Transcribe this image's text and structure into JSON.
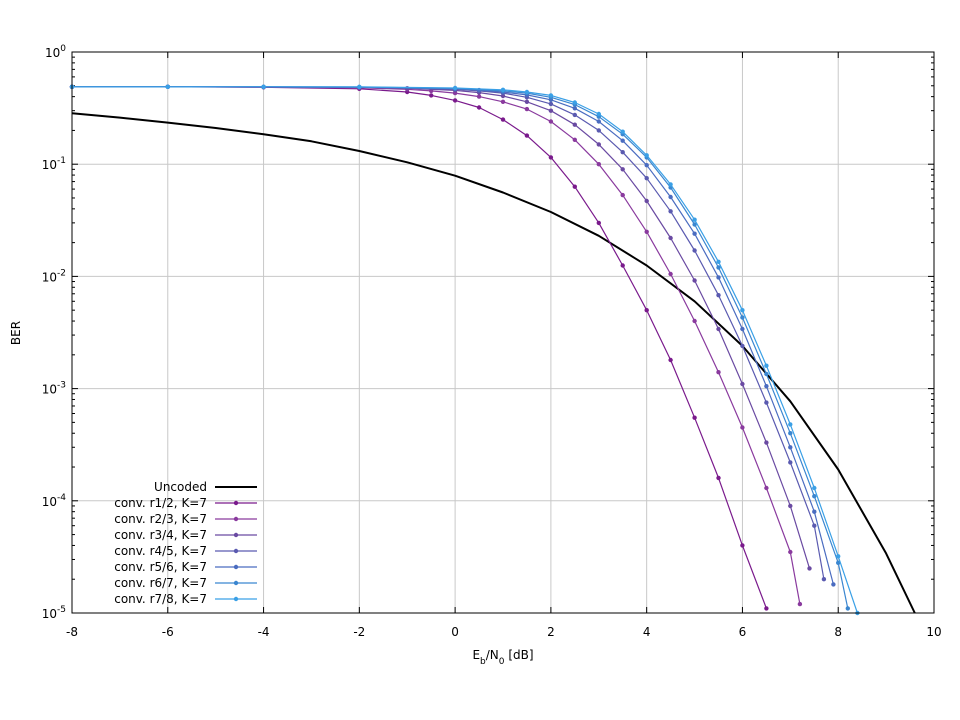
{
  "chart_data": {
    "type": "line",
    "title": "",
    "xlabel": {
      "main": "E",
      "sub1": "b",
      "mid": "/N",
      "sub2": "0",
      "tail": " [dB]"
    },
    "ylabel": "BER",
    "xlim": [
      -8,
      10
    ],
    "ylim": [
      1e-05,
      1
    ],
    "yscale": "log",
    "grid": true,
    "legend_position": "bottom-left",
    "x_ticks": [
      "-8",
      "-6",
      "-4",
      "-2",
      "0",
      "2",
      "4",
      "6",
      "8",
      "10"
    ],
    "y_ticks": [
      {
        "base": "10",
        "exp": "0"
      },
      {
        "base": "10",
        "exp": "-1"
      },
      {
        "base": "10",
        "exp": "-2"
      },
      {
        "base": "10",
        "exp": "-3"
      },
      {
        "base": "10",
        "exp": "-4"
      },
      {
        "base": "10",
        "exp": "-5"
      }
    ],
    "series": [
      {
        "name": "Uncoded",
        "color": "#000000",
        "markers": false,
        "x": [
          -8,
          -7,
          -6,
          -5,
          -4,
          -3,
          -2,
          -1,
          0,
          1,
          2,
          3,
          4,
          5,
          6,
          7,
          8,
          9,
          9.6
        ],
        "y": [
          0.285,
          0.26,
          0.235,
          0.21,
          0.185,
          0.16,
          0.131,
          0.104,
          0.079,
          0.056,
          0.0375,
          0.023,
          0.0125,
          0.006,
          0.0024,
          0.00077,
          0.00019,
          3.4e-05,
          1e-05
        ]
      },
      {
        "name": "conv. r1/2, K=7",
        "color": "#7a1a8c",
        "markers": true,
        "x": [
          -8,
          -6,
          -4,
          -2,
          -1,
          -0.5,
          0,
          0.5,
          1,
          1.5,
          2,
          2.5,
          3,
          3.5,
          4,
          4.5,
          5,
          5.5,
          6,
          6.5
        ],
        "y": [
          0.49,
          0.49,
          0.485,
          0.47,
          0.44,
          0.41,
          0.37,
          0.32,
          0.25,
          0.18,
          0.115,
          0.063,
          0.03,
          0.0125,
          0.005,
          0.0018,
          0.00055,
          0.00016,
          4e-05,
          1.1e-05
        ]
      },
      {
        "name": "conv. r2/3, K=7",
        "color": "#8a3a9e",
        "markers": true,
        "x": [
          -8,
          -6,
          -4,
          -2,
          -1,
          -0.5,
          0,
          0.5,
          1,
          1.5,
          2,
          2.5,
          3,
          3.5,
          4,
          4.5,
          5,
          5.5,
          6,
          6.5,
          7,
          7.2
        ],
        "y": [
          0.49,
          0.49,
          0.488,
          0.48,
          0.465,
          0.45,
          0.43,
          0.4,
          0.36,
          0.31,
          0.24,
          0.165,
          0.1,
          0.053,
          0.025,
          0.0105,
          0.004,
          0.0014,
          0.00045,
          0.00013,
          3.5e-05,
          1.2e-05
        ]
      },
      {
        "name": "conv. r3/4, K=7",
        "color": "#6a4aa2",
        "markers": true,
        "x": [
          -8,
          -6,
          -4,
          -2,
          -1,
          0,
          0.5,
          1,
          1.5,
          2,
          2.5,
          3,
          3.5,
          4,
          4.5,
          5,
          5.5,
          6,
          6.5,
          7,
          7.4
        ],
        "y": [
          0.49,
          0.49,
          0.488,
          0.484,
          0.475,
          0.455,
          0.435,
          0.405,
          0.36,
          0.3,
          0.225,
          0.15,
          0.09,
          0.047,
          0.022,
          0.0092,
          0.0034,
          0.0011,
          0.00033,
          9e-05,
          2.5e-05
        ]
      },
      {
        "name": "conv. r4/5, K=7",
        "color": "#5a5ab0",
        "markers": true,
        "x": [
          -8,
          -6,
          -4,
          -2,
          0,
          0.5,
          1,
          1.5,
          2,
          2.5,
          3,
          3.5,
          4,
          4.5,
          5,
          5.5,
          6,
          6.5,
          7,
          7.5,
          7.7
        ],
        "y": [
          0.49,
          0.49,
          0.489,
          0.486,
          0.465,
          0.45,
          0.43,
          0.395,
          0.345,
          0.275,
          0.2,
          0.128,
          0.075,
          0.038,
          0.017,
          0.0068,
          0.0024,
          0.00075,
          0.00022,
          6e-05,
          2e-05
        ]
      },
      {
        "name": "conv. r5/6, K=7",
        "color": "#4a6cc0",
        "markers": true,
        "x": [
          -8,
          -6,
          -4,
          -2,
          0,
          0.5,
          1,
          1.5,
          2,
          2.5,
          3,
          3.5,
          4,
          4.5,
          5,
          5.5,
          6,
          6.5,
          7,
          7.5,
          7.9
        ],
        "y": [
          0.49,
          0.49,
          0.489,
          0.487,
          0.47,
          0.458,
          0.44,
          0.415,
          0.375,
          0.315,
          0.24,
          0.162,
          0.098,
          0.051,
          0.024,
          0.0098,
          0.0034,
          0.00105,
          0.0003,
          8e-05,
          1.8e-05
        ]
      },
      {
        "name": "conv. r6/7, K=7",
        "color": "#3a86d0",
        "markers": true,
        "x": [
          -8,
          -6,
          -4,
          -2,
          0,
          1,
          1.5,
          2,
          2.5,
          3,
          3.5,
          4,
          4.5,
          5,
          5.5,
          6,
          6.5,
          7,
          7.5,
          8,
          8.2
        ],
        "y": [
          0.49,
          0.49,
          0.489,
          0.488,
          0.475,
          0.45,
          0.43,
          0.395,
          0.34,
          0.265,
          0.185,
          0.115,
          0.062,
          0.029,
          0.012,
          0.0043,
          0.00135,
          0.0004,
          0.00011,
          2.8e-05,
          1.1e-05
        ]
      },
      {
        "name": "conv. r7/8, K=7",
        "color": "#3aa0e6",
        "markers": true,
        "x": [
          -8,
          -6,
          -4,
          -2,
          0,
          1,
          1.5,
          2,
          2.5,
          3,
          3.5,
          4,
          4.5,
          5,
          5.5,
          6,
          6.5,
          7,
          7.5,
          8,
          8.4
        ],
        "y": [
          0.49,
          0.49,
          0.49,
          0.489,
          0.478,
          0.46,
          0.44,
          0.41,
          0.355,
          0.28,
          0.195,
          0.12,
          0.066,
          0.032,
          0.0135,
          0.005,
          0.0016,
          0.00048,
          0.00013,
          3.2e-05,
          1e-05
        ]
      }
    ]
  }
}
